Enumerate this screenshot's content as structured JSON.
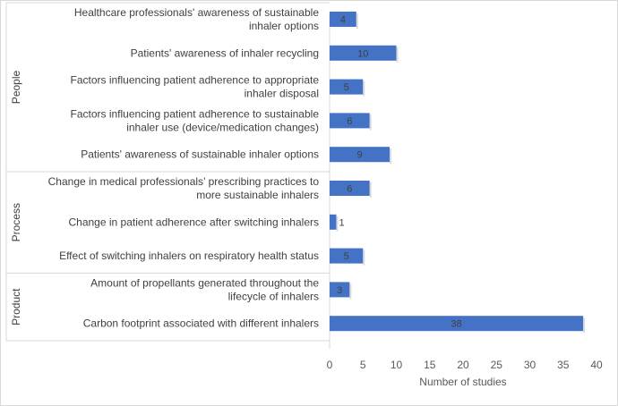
{
  "chart_data": {
    "type": "bar",
    "orientation": "horizontal",
    "title": "",
    "xlabel": "Number of studies",
    "ylabel": "",
    "xlim": [
      0,
      40
    ],
    "xticks": [
      "0",
      "5",
      "10",
      "15",
      "20",
      "25",
      "30",
      "35",
      "40"
    ],
    "grid": false,
    "bar_color": "#4472c4",
    "groups": [
      {
        "name": "People",
        "categories": [
          {
            "lines": [
              "Healthcare professionals' awareness of sustainable",
              "inhaler options"
            ],
            "value": 4,
            "value_label": "4"
          },
          {
            "lines": [
              "Patients' awareness of inhaler recycling"
            ],
            "value": 10,
            "value_label": "10"
          },
          {
            "lines": [
              "Factors influencing patient adherence to appropriate",
              "inhaler disposal"
            ],
            "value": 5,
            "value_label": "5"
          },
          {
            "lines": [
              "Factors influencing patient adherence to sustainable",
              "inhaler use (device/medication changes)"
            ],
            "value": 6,
            "value_label": "6"
          },
          {
            "lines": [
              "Patients' awareness of sustainable inhaler options"
            ],
            "value": 9,
            "value_label": "9"
          }
        ]
      },
      {
        "name": "Process",
        "categories": [
          {
            "lines": [
              "Change in medical professionals’ prescribing practices to",
              "more sustainable inhalers"
            ],
            "value": 6,
            "value_label": "6"
          },
          {
            "lines": [
              "Change in patient adherence after switching inhalers"
            ],
            "value": 1,
            "value_label": "1"
          },
          {
            "lines": [
              "Effect of switching inhalers on respiratory health status"
            ],
            "value": 5,
            "value_label": "5"
          }
        ]
      },
      {
        "name": "Product",
        "categories": [
          {
            "lines": [
              "Amount of propellants generated throughout the",
              "lifecycle of inhalers"
            ],
            "value": 3,
            "value_label": "3"
          },
          {
            "lines": [
              "Carbon footprint associated with different inhalers"
            ],
            "value": 38,
            "value_label": "38"
          }
        ]
      }
    ]
  }
}
